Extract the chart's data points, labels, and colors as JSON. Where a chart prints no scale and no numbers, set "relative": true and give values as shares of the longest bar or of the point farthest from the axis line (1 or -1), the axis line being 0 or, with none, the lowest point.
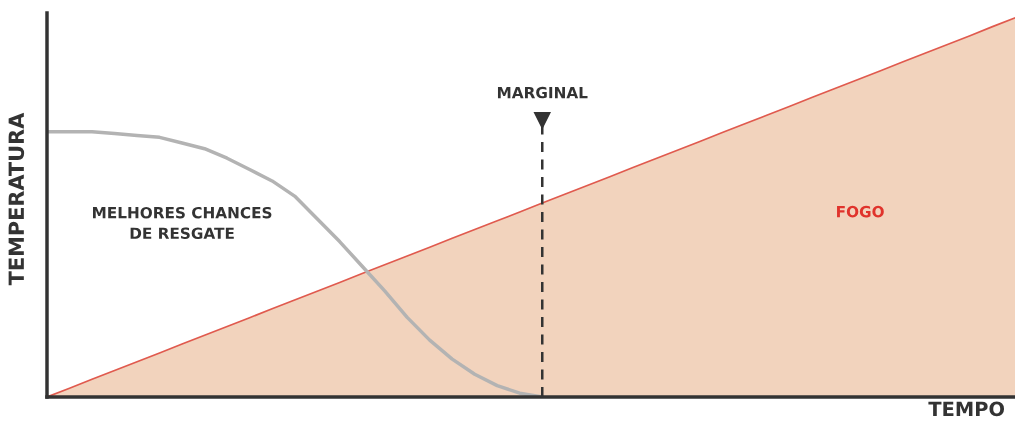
{
  "chart_data": {
    "type": "area",
    "relative": true,
    "xlabel": "TEMPO",
    "ylabel": "TEMPERATURA",
    "categories": [
      null,
      null,
      null,
      null,
      null,
      null,
      null,
      null,
      null,
      null,
      null,
      null,
      null,
      null,
      null,
      null,
      null,
      null,
      null,
      null,
      null,
      null,
      null,
      null,
      null,
      null,
      null,
      null,
      null,
      null,
      null,
      null,
      null,
      null,
      null,
      null,
      null,
      null,
      null,
      null,
      null,
      null,
      null,
      null
    ],
    "grid": false,
    "legend": false,
    "series": [
      {
        "name": "FOGO",
        "color": "#e05a4e",
        "values": [
          0,
          0.023,
          0.047,
          0.07,
          0.093,
          0.116,
          0.14,
          0.163,
          0.186,
          0.209,
          0.233,
          0.256,
          0.279,
          0.302,
          0.326,
          0.349,
          0.372,
          0.395,
          0.419,
          0.442,
          0.465,
          0.488,
          0.512,
          0.535,
          0.558,
          0.581,
          0.605,
          0.628,
          0.651,
          0.674,
          0.698,
          0.721,
          0.744,
          0.767,
          0.791,
          0.814,
          0.837,
          0.86,
          0.884,
          0.907,
          0.93,
          0.953,
          0.977,
          1.0
        ]
      },
      {
        "name": "MELHORES CHANCES\nDE RESGATE",
        "type": "line",
        "color": "#b3b3b3",
        "values": [
          0.7,
          0.7,
          0.7,
          0.695,
          0.69,
          0.685,
          0.67,
          0.655,
          0.63,
          0.6,
          0.57,
          0.53,
          0.47,
          0.41,
          0.345,
          0.28,
          0.21,
          0.15,
          0.1,
          0.06,
          0.03,
          0.01,
          0,
          null,
          null,
          null,
          null,
          null,
          null,
          null,
          null,
          null,
          null,
          null,
          null,
          null,
          null,
          null,
          null,
          null,
          null,
          null,
          null,
          null
        ]
      }
    ],
    "annotations": [
      "MARGINAL"
    ]
  }
}
